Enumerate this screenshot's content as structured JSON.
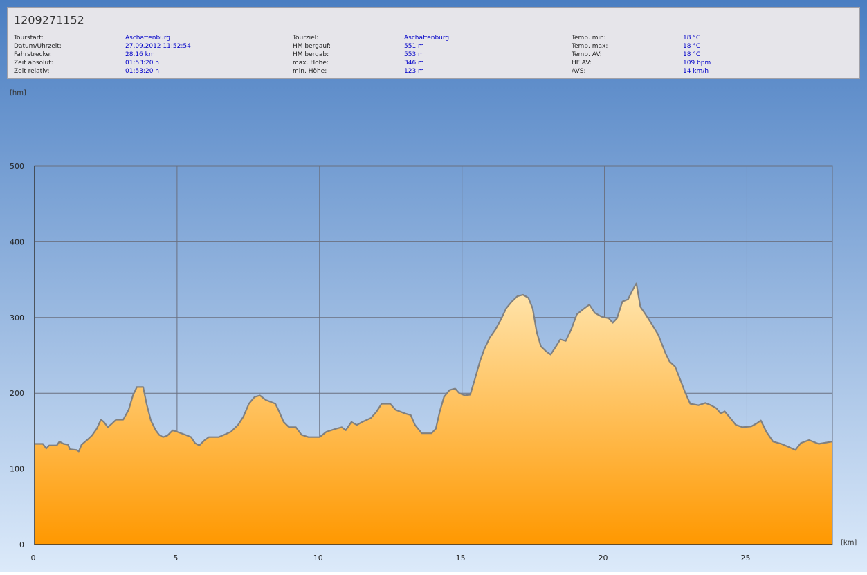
{
  "header": {
    "title": "1209271152",
    "columns": [
      [
        {
          "label": "Tourstart:",
          "value": "Aschaffenburg"
        },
        {
          "label": "Datum/Uhrzeit:",
          "value": "27.09.2012 11:52:54"
        },
        {
          "label": "Fahrstrecke:",
          "value": "28.16 km"
        },
        {
          "label": "Zeit absolut:",
          "value": "01:53:20 h"
        },
        {
          "label": "Zeit relativ:",
          "value": "01:53:20 h"
        }
      ],
      [
        {
          "label": "Tourziel:",
          "value": "Aschaffenburg"
        },
        {
          "label": "HM bergauf:",
          "value": "551 m"
        },
        {
          "label": "HM bergab:",
          "value": "553 m"
        },
        {
          "label": "max. Höhe:",
          "value": "346 m"
        },
        {
          "label": "min. Höhe:",
          "value": "123 m"
        }
      ],
      [
        {
          "label": "Temp. min:",
          "value": "18 °C"
        },
        {
          "label": "Temp. max:",
          "value": "18 °C"
        },
        {
          "label": "Temp. AV:",
          "value": "18 °C"
        },
        {
          "label": "HF AV:",
          "value": "109 bpm"
        },
        {
          "label": "AVS:",
          "value": "14 km/h"
        }
      ]
    ]
  },
  "chart_data": {
    "type": "area",
    "y_label": "[hm]",
    "x_label": "[km]",
    "color": "#ff9800",
    "line_color": "#808080",
    "grid": true,
    "xlim": [
      0,
      28
    ],
    "ylim": [
      0,
      500
    ],
    "xticks": [
      0,
      5,
      10,
      15,
      20,
      25
    ],
    "yticks": [
      0,
      100,
      200,
      300,
      400,
      500
    ],
    "x": [
      0,
      0.29,
      0.41,
      0.51,
      0.78,
      0.87,
      1.02,
      1.17,
      1.24,
      1.48,
      1.55,
      1.65,
      1.84,
      2.01,
      2.18,
      2.33,
      2.43,
      2.57,
      2.72,
      2.86,
      3.11,
      3.3,
      3.45,
      3.59,
      3.81,
      3.93,
      4.08,
      4.25,
      4.37,
      4.51,
      4.66,
      4.85,
      5,
      5.29,
      5.49,
      5.63,
      5.78,
      5.97,
      6.12,
      6.46,
      6.65,
      6.89,
      7.14,
      7.33,
      7.52,
      7.72,
      7.91,
      8.11,
      8.25,
      8.45,
      8.59,
      8.74,
      8.93,
      9.17,
      9.37,
      9.61,
      10,
      10.24,
      10.58,
      10.78,
      10.92,
      11.12,
      11.31,
      11.5,
      11.8,
      11.99,
      12.18,
      12.48,
      12.67,
      13.01,
      13.2,
      13.35,
      13.59,
      13.93,
      14.08,
      14.22,
      14.37,
      14.56,
      14.76,
      14.9,
      15.1,
      15.29,
      15.44,
      15.63,
      15.78,
      15.97,
      16.17,
      16.36,
      16.55,
      16.75,
      16.94,
      17.14,
      17.33,
      17.48,
      17.62,
      17.77,
      17.96,
      18.11,
      18.3,
      18.45,
      18.64,
      18.83,
      19.03,
      19.22,
      19.47,
      19.66,
      19.9,
      20.15,
      20.29,
      20.44,
      20.63,
      20.83,
      20.97,
      21.12,
      21.26,
      21.41,
      21.65,
      21.89,
      22.14,
      22.28,
      22.48,
      22.67,
      22.82,
      23.01,
      23.3,
      23.54,
      23.74,
      23.93,
      24.08,
      24.22,
      24.42,
      24.61,
      24.85,
      25.15,
      25.34,
      25.49,
      25.68,
      25.92,
      26.21,
      26.46,
      26.7,
      26.89,
      27.18,
      27.52,
      27.99
    ],
    "values": [
      133,
      133,
      127,
      131,
      131,
      136,
      133,
      132,
      126,
      125,
      123,
      132,
      138,
      144,
      153,
      165,
      162,
      155,
      160,
      165,
      165,
      178,
      197,
      208,
      208,
      186,
      164,
      151,
      145,
      142,
      144,
      151,
      149,
      145,
      142,
      134,
      131,
      138,
      142,
      142,
      145,
      149,
      158,
      169,
      186,
      195,
      197,
      191,
      189,
      186,
      175,
      162,
      155,
      155,
      145,
      142,
      142,
      149,
      153,
      155,
      151,
      162,
      158,
      162,
      167,
      175,
      186,
      186,
      178,
      173,
      171,
      158,
      147,
      147,
      153,
      176,
      195,
      204,
      206,
      200,
      197,
      198,
      217,
      242,
      258,
      273,
      284,
      297,
      312,
      321,
      328,
      330,
      326,
      312,
      281,
      262,
      255,
      251,
      262,
      271,
      269,
      284,
      304,
      310,
      317,
      306,
      301,
      299,
      293,
      299,
      321,
      324,
      335,
      345,
      314,
      306,
      292,
      277,
      253,
      242,
      235,
      217,
      202,
      186,
      184,
      187,
      184,
      180,
      173,
      176,
      167,
      158,
      155,
      156,
      160,
      164,
      149,
      136,
      133,
      129,
      125,
      134,
      138,
      133,
      136
    ]
  }
}
